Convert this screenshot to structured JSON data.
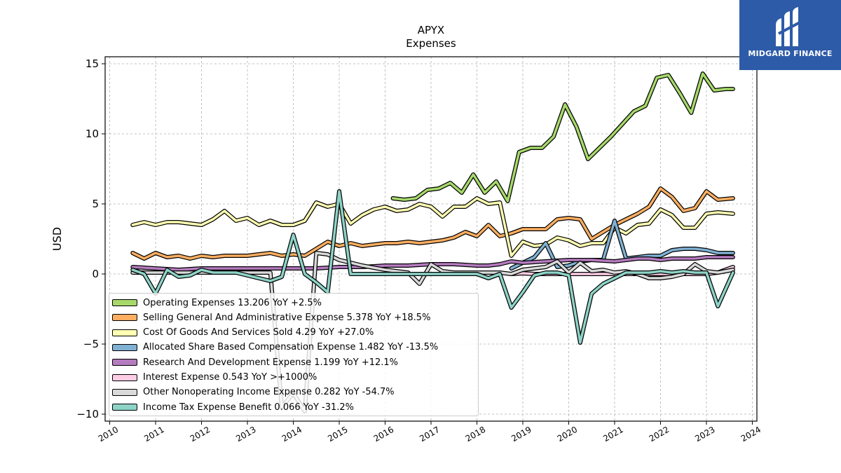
{
  "chart_data": {
    "type": "line",
    "title": "APYX",
    "subtitle": "Expenses",
    "ylabel": "USD",
    "xlabel": "",
    "ylim": [
      -10.5,
      15.5
    ],
    "xlim": [
      2009.9,
      2024.1
    ],
    "yticks": [
      15,
      10,
      5,
      0,
      -5,
      -10
    ],
    "xticks": [
      "2010",
      "2011",
      "2012",
      "2013",
      "2014",
      "2015",
      "2016",
      "2017",
      "2018",
      "2019",
      "2020",
      "2021",
      "2022",
      "2023",
      "2024"
    ],
    "grid": true,
    "legend_position": "bottom-left",
    "series": [
      {
        "name": "Operating Expenses",
        "summary": "Operating Expenses  13.206 YoY +2.5%",
        "color": "#a6d96a",
        "x": [
          2016.17,
          2016.42,
          2016.67,
          2016.92,
          2017.17,
          2017.42,
          2017.67,
          2017.92,
          2018.17,
          2018.42,
          2018.67,
          2018.92,
          2019.17,
          2019.42,
          2019.67,
          2019.92,
          2020.17,
          2020.42,
          2020.67,
          2020.92,
          2021.17,
          2021.42,
          2021.67,
          2021.92,
          2022.17,
          2022.42,
          2022.67,
          2022.92,
          2023.17,
          2023.42,
          2023.58
        ],
        "y": [
          5.4,
          5.3,
          5.4,
          6.0,
          6.1,
          6.5,
          5.8,
          7.1,
          5.8,
          6.6,
          5.2,
          8.7,
          9.0,
          9.0,
          9.8,
          12.1,
          10.5,
          8.2,
          9.0,
          9.8,
          10.7,
          11.6,
          12.0,
          14.0,
          14.2,
          12.9,
          11.5,
          14.3,
          13.1,
          13.2,
          13.2
        ]
      },
      {
        "name": "Selling General And Administrative Expense",
        "summary": "Selling General And Administrative Expense  5.378 YoY +18.5%",
        "color": "#fdae61",
        "x": [
          2010.5,
          2010.75,
          2011.0,
          2011.25,
          2011.5,
          2011.75,
          2012.0,
          2012.25,
          2012.5,
          2012.75,
          2013.0,
          2013.25,
          2013.5,
          2013.75,
          2014.0,
          2014.25,
          2014.5,
          2014.75,
          2015.0,
          2015.25,
          2015.5,
          2015.75,
          2016.0,
          2016.25,
          2016.5,
          2016.75,
          2017.0,
          2017.25,
          2017.5,
          2017.75,
          2018.0,
          2018.25,
          2018.5,
          2018.75,
          2019.0,
          2019.25,
          2019.5,
          2019.75,
          2020.0,
          2020.25,
          2020.5,
          2020.75,
          2021.0,
          2021.25,
          2021.5,
          2021.75,
          2022.0,
          2022.25,
          2022.5,
          2022.75,
          2023.0,
          2023.25,
          2023.58
        ],
        "y": [
          1.5,
          1.1,
          1.5,
          1.2,
          1.3,
          1.1,
          1.3,
          1.2,
          1.3,
          1.3,
          1.3,
          1.4,
          1.5,
          1.3,
          1.4,
          1.3,
          1.8,
          2.3,
          2.0,
          2.2,
          2.0,
          2.1,
          2.2,
          2.2,
          2.3,
          2.2,
          2.3,
          2.4,
          2.6,
          3.0,
          2.7,
          3.5,
          2.7,
          2.9,
          3.2,
          3.2,
          3.2,
          3.9,
          4.0,
          3.9,
          2.5,
          3.0,
          3.5,
          3.9,
          4.3,
          4.8,
          6.1,
          5.5,
          4.5,
          4.7,
          5.9,
          5.3,
          5.4
        ]
      },
      {
        "name": "Cost Of Goods And Services Sold",
        "summary": "Cost Of Goods And Services Sold  4.29 YoY +27.0%",
        "color": "#ffffb3",
        "x": [
          2010.5,
          2010.75,
          2011.0,
          2011.25,
          2011.5,
          2011.75,
          2012.0,
          2012.25,
          2012.5,
          2012.75,
          2013.0,
          2013.25,
          2013.5,
          2013.75,
          2014.0,
          2014.25,
          2014.5,
          2014.75,
          2015.0,
          2015.25,
          2015.5,
          2015.75,
          2016.0,
          2016.25,
          2016.5,
          2016.75,
          2017.0,
          2017.25,
          2017.5,
          2017.75,
          2018.0,
          2018.25,
          2018.5,
          2018.75,
          2019.0,
          2019.25,
          2019.5,
          2019.75,
          2020.0,
          2020.25,
          2020.5,
          2020.75,
          2021.0,
          2021.25,
          2021.5,
          2021.75,
          2022.0,
          2022.25,
          2022.5,
          2022.75,
          2023.0,
          2023.25,
          2023.58
        ],
        "y": [
          3.5,
          3.7,
          3.5,
          3.7,
          3.7,
          3.6,
          3.5,
          3.9,
          4.5,
          3.8,
          4.0,
          3.5,
          3.8,
          3.5,
          3.5,
          3.8,
          5.1,
          4.8,
          5.0,
          3.6,
          4.2,
          4.6,
          4.8,
          4.5,
          4.6,
          5.0,
          4.8,
          4.1,
          4.8,
          4.8,
          5.4,
          5.0,
          5.1,
          1.3,
          2.3,
          2.0,
          2.1,
          2.6,
          2.4,
          2.0,
          2.2,
          2.2,
          3.3,
          2.9,
          3.5,
          3.6,
          4.6,
          4.2,
          3.3,
          3.3,
          4.3,
          4.4,
          4.3
        ]
      },
      {
        "name": "Allocated Share Based Compensation Expense",
        "summary": "Allocated Share Based Compensation Expense  1.482 YoY -13.5%",
        "color": "#80b1d3",
        "x": [
          2018.75,
          2019.0,
          2019.25,
          2019.5,
          2019.75,
          2020.0,
          2020.25,
          2020.5,
          2020.75,
          2021.0,
          2021.25,
          2021.5,
          2021.75,
          2022.0,
          2022.25,
          2022.5,
          2022.75,
          2023.0,
          2023.25,
          2023.58
        ],
        "y": [
          0.4,
          0.8,
          1.2,
          2.2,
          0.5,
          0.6,
          0.9,
          1.0,
          1.0,
          3.8,
          1.1,
          1.2,
          1.3,
          1.3,
          1.7,
          1.8,
          1.8,
          1.7,
          1.5,
          1.5
        ]
      },
      {
        "name": "Research And Development Expense",
        "summary": "Research And Development Expense  1.199 YoY +12.1%",
        "color": "#b57bbf",
        "x": [
          2010.5,
          2011.0,
          2011.5,
          2012.0,
          2012.5,
          2013.0,
          2013.5,
          2014.0,
          2014.5,
          2015.0,
          2015.5,
          2016.0,
          2016.5,
          2017.0,
          2017.5,
          2018.0,
          2018.25,
          2018.5,
          2018.75,
          2019.0,
          2019.5,
          2020.0,
          2020.5,
          2021.0,
          2021.25,
          2021.5,
          2021.75,
          2022.0,
          2022.25,
          2022.5,
          2022.75,
          2023.0,
          2023.25,
          2023.58
        ],
        "y": [
          0.5,
          0.4,
          0.3,
          0.4,
          0.4,
          0.4,
          0.4,
          0.4,
          0.4,
          0.5,
          0.5,
          0.6,
          0.6,
          0.7,
          0.7,
          0.6,
          0.6,
          0.7,
          0.9,
          0.8,
          0.9,
          1.0,
          1.0,
          0.9,
          1.0,
          1.1,
          1.1,
          1.0,
          1.1,
          1.1,
          1.1,
          1.2,
          1.2,
          1.2
        ]
      },
      {
        "name": "Interest Expense",
        "summary": "Interest Expense  0.543 YoY >+1000%",
        "color": "#fccde5",
        "x": [
          2018.75,
          2019.0,
          2019.25,
          2019.5,
          2019.75,
          2020.0,
          2020.25,
          2020.5,
          2020.75,
          2021.0,
          2021.25,
          2021.5,
          2021.75,
          2022.0,
          2022.25,
          2022.5,
          2022.75,
          2023.0,
          2023.25,
          2023.58
        ],
        "y": [
          0.0,
          0.05,
          0.0,
          0.0,
          0.0,
          0.0,
          0.0,
          0.0,
          0.0,
          0.0,
          0.0,
          0.0,
          0.0,
          0.0,
          0.0,
          0.0,
          0.0,
          0.0,
          0.1,
          0.5
        ]
      },
      {
        "name": "Other Nonoperating Income Expense",
        "summary": "Other Nonoperating Income Expense  0.282 YoY -54.7%",
        "color": "#d9d9d9",
        "x": [
          2010.5,
          2011.0,
          2011.5,
          2012.0,
          2012.5,
          2013.0,
          2013.5,
          2013.75,
          2014.0,
          2014.25,
          2014.5,
          2014.75,
          2015.0,
          2015.5,
          2016.0,
          2016.5,
          2016.75,
          2017.0,
          2017.25,
          2017.5,
          2018.0,
          2018.5,
          2018.75,
          2019.0,
          2019.5,
          2019.75,
          2020.0,
          2020.25,
          2020.5,
          2020.75,
          2021.0,
          2021.25,
          2021.5,
          2021.75,
          2022.0,
          2022.25,
          2022.5,
          2022.75,
          2023.0,
          2023.25,
          2023.58
        ],
        "y": [
          0.1,
          0.1,
          0.1,
          0.1,
          0.1,
          0.1,
          0.1,
          -9.5,
          -8.5,
          -9.8,
          1.5,
          1.4,
          1.0,
          0.6,
          0.3,
          0.1,
          -0.7,
          0.7,
          0.2,
          0.1,
          0.1,
          0.1,
          0.0,
          0.3,
          0.5,
          0.9,
          0.1,
          0.8,
          0.2,
          0.3,
          0.1,
          0.2,
          0.0,
          -0.3,
          -0.3,
          -0.2,
          0.0,
          0.7,
          0.2,
          0.1,
          0.3
        ]
      },
      {
        "name": "Income Tax Expense Benefit",
        "summary": "Income Tax Expense Benefit  0.066 YoY -31.2%",
        "color": "#8dd3c7",
        "x": [
          2010.5,
          2010.75,
          2011.0,
          2011.25,
          2011.5,
          2011.75,
          2012.0,
          2012.25,
          2012.5,
          2012.75,
          2013.0,
          2013.25,
          2013.5,
          2013.75,
          2014.0,
          2014.25,
          2014.5,
          2014.75,
          2015.0,
          2015.25,
          2015.5,
          2016.0,
          2016.5,
          2017.0,
          2017.5,
          2018.0,
          2018.25,
          2018.5,
          2018.75,
          2019.0,
          2019.25,
          2019.5,
          2019.75,
          2020.0,
          2020.25,
          2020.5,
          2020.75,
          2021.0,
          2021.25,
          2021.5,
          2021.75,
          2022.0,
          2022.25,
          2022.5,
          2022.75,
          2023.0,
          2023.25,
          2023.58
        ],
        "y": [
          0.3,
          0.0,
          -1.4,
          0.3,
          -0.2,
          -0.1,
          0.3,
          0.1,
          0.1,
          0.1,
          -0.1,
          -0.3,
          -0.5,
          -0.2,
          2.8,
          0.0,
          -0.6,
          -1.3,
          5.9,
          0.0,
          0.0,
          0.0,
          0.0,
          0.0,
          0.0,
          0.0,
          -0.3,
          0.0,
          -2.4,
          -1.3,
          -0.1,
          0.1,
          0.1,
          -0.1,
          -4.9,
          -1.4,
          -0.7,
          -0.3,
          0.1,
          0.1,
          0.1,
          0.2,
          0.1,
          0.2,
          0.1,
          0.1,
          -2.3,
          0.1
        ]
      }
    ]
  },
  "brand": {
    "name": "MIDGARD FINANCE",
    "background_color": "#2d5ba8"
  }
}
